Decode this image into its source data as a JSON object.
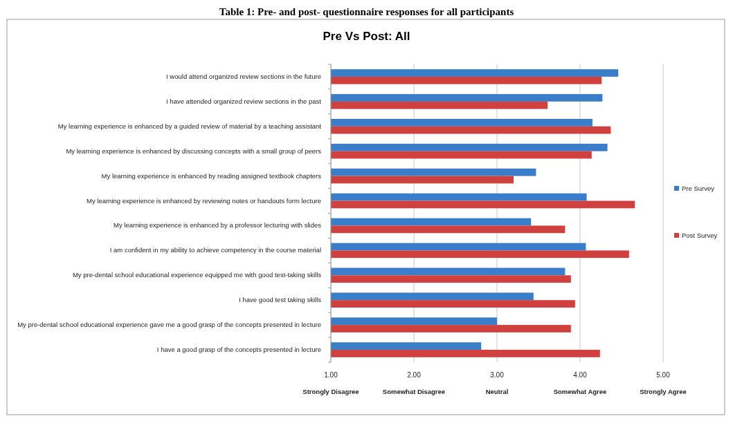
{
  "chart_data": {
    "type": "bar",
    "orientation": "horizontal",
    "title": "Pre Vs Post: All",
    "annotations": [
      "Table 1: Pre- and post- questionnaire responses for all participants",
      "Strongly Disagree",
      "Somewhat Disagree",
      "Neutral",
      "Somewhat Agree",
      "Strongly Agree"
    ],
    "categories": [
      "I would attend organized review sections in the future",
      "I have attended organized review sections in the past",
      "My learning experience is enhanced by a guided review of material by a teaching assistant",
      "My learning experience is enhanced by discussing concepts with a  small group of peers",
      "My learning experience is enhanced by reading assigned textbook chapters",
      "My learning experience is enhanced by reviewing notes or handouts form lecture",
      "My learning experience is enhanced by a professor lecturing with slides",
      "I am confident in my ability to achieve competency in the course material",
      "My pre-dental school educational experience equipped me with good test-taking skills",
      "I have good test taking skills",
      "My pre-dental school educational experience gave me a good grasp of the concepts presented in lecture",
      "I have a good grasp of the concepts presented in lecture"
    ],
    "series": [
      {
        "name": "Pre Survey",
        "color": "#3a7dc9",
        "values": [
          4.46,
          4.27,
          4.15,
          4.33,
          3.47,
          4.08,
          3.41,
          4.07,
          3.82,
          3.44,
          3.0,
          2.81
        ]
      },
      {
        "name": "Post Survey",
        "color": "#d0403f",
        "values": [
          4.26,
          3.61,
          4.37,
          4.14,
          3.2,
          4.66,
          3.82,
          4.59,
          3.89,
          3.94,
          3.89,
          4.24
        ]
      }
    ],
    "xlim": [
      1,
      5
    ],
    "xticks": [
      {
        "value": 1,
        "label": "1.00"
      },
      {
        "value": 2,
        "label": "2.00"
      },
      {
        "value": 3,
        "label": "3.00"
      },
      {
        "value": 4,
        "label": "4.00"
      },
      {
        "value": 5,
        "label": "5.00"
      }
    ],
    "grid": "x",
    "legend": "right"
  }
}
